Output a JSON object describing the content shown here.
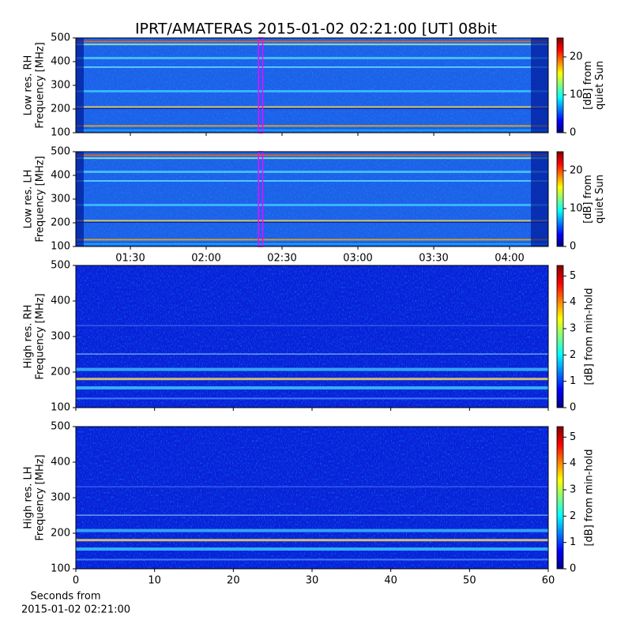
{
  "chart_data": [
    {
      "type": "spectrogram",
      "title": "IPRT/AMATERAS 2015-01-02 02:21:00 [UT]   08bit",
      "ylabel": [
        "Low res. RH",
        "Frequency [MHz]"
      ],
      "xlim": [
        68.44,
        255.3
      ],
      "ylim": [
        100,
        500
      ],
      "yticks": [
        100,
        200,
        300,
        400,
        500
      ],
      "marker": {
        "start": 141,
        "end": 142,
        "color": "#ff00ff"
      },
      "colorbar": {
        "label": [
          "[dB] from",
          "quiet Sun"
        ],
        "lim": [
          0,
          25
        ],
        "ticks": [
          0,
          10,
          20
        ],
        "colormap": "jet"
      }
    },
    {
      "type": "spectrogram",
      "ylabel": [
        "Low res. LH",
        "Frequency [MHz]"
      ],
      "xlim": [
        68.44,
        255.3
      ],
      "xticks": [
        {
          "value": 90,
          "label": "01:30"
        },
        {
          "value": 120,
          "label": "02:00"
        },
        {
          "value": 150,
          "label": "02:30"
        },
        {
          "value": 180,
          "label": "03:00"
        },
        {
          "value": 210,
          "label": "03:30"
        },
        {
          "value": 240,
          "label": "04:00"
        }
      ],
      "ylim": [
        100,
        500
      ],
      "yticks": [
        100,
        200,
        300,
        400,
        500
      ],
      "marker": {
        "start": 141,
        "end": 142,
        "color": "#ff00ff"
      },
      "colorbar": {
        "label": [
          "[dB] from",
          "quiet Sun"
        ],
        "lim": [
          0,
          25
        ],
        "ticks": [
          0,
          10,
          20
        ],
        "colormap": "jet"
      }
    },
    {
      "type": "spectrogram",
      "ylabel": [
        "High res. RH",
        "Frequency [MHz]"
      ],
      "xlim": [
        0,
        60
      ],
      "ylim": [
        100,
        500
      ],
      "yticks": [
        100,
        200,
        300,
        400,
        500
      ],
      "colorbar": {
        "label": [
          "[dB] from min-hold"
        ],
        "lim": [
          0,
          5.4
        ],
        "ticks": [
          0,
          1,
          2,
          3,
          4,
          5
        ],
        "colormap": "jet"
      }
    },
    {
      "type": "spectrogram",
      "ylabel": [
        "High res. LH",
        "Frequency [MHz]"
      ],
      "xlabel": [
        "Seconds from",
        "2015-01-02 02:21:00"
      ],
      "xlim": [
        0,
        60
      ],
      "xticks": [
        0,
        10,
        20,
        30,
        40,
        50,
        60
      ],
      "ylim": [
        100,
        500
      ],
      "yticks": [
        100,
        200,
        300,
        400,
        500
      ],
      "colorbar": {
        "label": [
          "[dB] from min-hold"
        ],
        "lim": [
          0,
          5.4
        ],
        "ticks": [
          0,
          1,
          2,
          3,
          4,
          5
        ],
        "colormap": "jet"
      }
    }
  ]
}
